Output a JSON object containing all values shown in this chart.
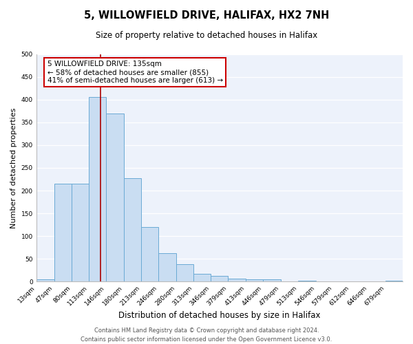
{
  "title": "5, WILLOWFIELD DRIVE, HALIFAX, HX2 7NH",
  "subtitle": "Size of property relative to detached houses in Halifax",
  "xlabel": "Distribution of detached houses by size in Halifax",
  "ylabel": "Number of detached properties",
  "bar_color": "#c9ddf2",
  "bar_edge_color": "#6aaad4",
  "background_color": "#edf2fb",
  "grid_color": "#ffffff",
  "red_line_x": 135,
  "annotation_title": "5 WILLOWFIELD DRIVE: 135sqm",
  "annotation_line1": "← 58% of detached houses are smaller (855)",
  "annotation_line2": "41% of semi-detached houses are larger (613) →",
  "annotation_box_color": "#ffffff",
  "annotation_box_edge": "#cc0000",
  "footer1": "Contains HM Land Registry data © Crown copyright and database right 2024.",
  "footer2": "Contains public sector information licensed under the Open Government Licence v3.0.",
  "bins": [
    13,
    47,
    80,
    113,
    146,
    180,
    213,
    246,
    280,
    313,
    346,
    379,
    413,
    446,
    479,
    513,
    546,
    579,
    612,
    646,
    679,
    712
  ],
  "counts": [
    5,
    215,
    215,
    405,
    370,
    228,
    120,
    63,
    38,
    18,
    13,
    7,
    5,
    5,
    0,
    2,
    0,
    0,
    0,
    0,
    3
  ],
  "tick_labels": [
    "13sqm",
    "47sqm",
    "80sqm",
    "113sqm",
    "146sqm",
    "180sqm",
    "213sqm",
    "246sqm",
    "280sqm",
    "313sqm",
    "346sqm",
    "379sqm",
    "413sqm",
    "446sqm",
    "479sqm",
    "513sqm",
    "546sqm",
    "579sqm",
    "612sqm",
    "646sqm",
    "679sqm"
  ],
  "ylim": [
    0,
    500
  ],
  "yticks": [
    0,
    50,
    100,
    150,
    200,
    250,
    300,
    350,
    400,
    450,
    500
  ],
  "title_fontsize": 10.5,
  "subtitle_fontsize": 8.5,
  "ylabel_fontsize": 8,
  "xlabel_fontsize": 8.5,
  "tick_fontsize": 6.5,
  "ann_fontsize": 7.5,
  "footer_fontsize": 6
}
